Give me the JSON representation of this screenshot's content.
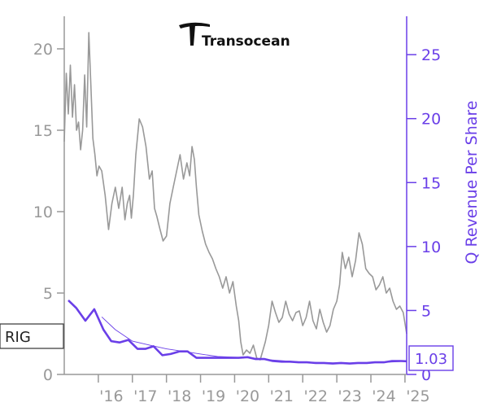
{
  "logo": {
    "company": "Transocean",
    "icon": "transocean-logo-icon"
  },
  "chart_data": {
    "type": "line",
    "ticker_label": "RIG",
    "last_value_label": "1.03",
    "x_ticks": [
      "'16",
      "'17",
      "'18",
      "'19",
      "'20",
      "'21",
      "'22",
      "'23",
      "'24",
      "'25"
    ],
    "x_range": [
      2015.0,
      2025.05
    ],
    "left_axis": {
      "ylabel": "",
      "ylim": [
        0,
        22
      ],
      "ticks": [
        0,
        5,
        10,
        15,
        20
      ],
      "color": "#999999"
    },
    "right_axis": {
      "ylabel": "Q Revenue Per Share",
      "ylim": [
        0,
        28
      ],
      "ticks": [
        0,
        5,
        10,
        15,
        20,
        25
      ],
      "color": "#6a3fe8"
    },
    "series": [
      {
        "axis": "left",
        "color": "#999999",
        "x": [
          2015.0,
          2015.06,
          2015.12,
          2015.18,
          2015.24,
          2015.3,
          2015.36,
          2015.42,
          2015.48,
          2015.54,
          2015.6,
          2015.66,
          2015.72,
          2015.78,
          2015.84,
          2015.9,
          2015.96,
          2016.02,
          2016.1,
          2016.2,
          2016.3,
          2016.4,
          2016.5,
          2016.6,
          2016.7,
          2016.78,
          2016.85,
          2016.92,
          2016.97,
          2017.03,
          2017.1,
          2017.2,
          2017.3,
          2017.4,
          2017.5,
          2017.58,
          2017.65,
          2017.72,
          2017.8,
          2017.9,
          2018.0,
          2018.1,
          2018.2,
          2018.3,
          2018.4,
          2018.5,
          2018.6,
          2018.68,
          2018.75,
          2018.82,
          2018.88,
          2018.95,
          2019.05,
          2019.15,
          2019.25,
          2019.35,
          2019.45,
          2019.55,
          2019.65,
          2019.75,
          2019.85,
          2019.95,
          2020.05,
          2020.12,
          2020.18,
          2020.25,
          2020.35,
          2020.45,
          2020.55,
          2020.65,
          2020.75,
          2020.82,
          2020.9,
          2021.0,
          2021.1,
          2021.2,
          2021.3,
          2021.4,
          2021.5,
          2021.6,
          2021.7,
          2021.8,
          2021.9,
          2022.0,
          2022.1,
          2022.2,
          2022.3,
          2022.4,
          2022.5,
          2022.6,
          2022.7,
          2022.8,
          2022.9,
          2023.0,
          2023.08,
          2023.16,
          2023.25,
          2023.35,
          2023.45,
          2023.55,
          2023.65,
          2023.75,
          2023.85,
          2023.95,
          2024.05,
          2024.15,
          2024.25,
          2024.35,
          2024.45,
          2024.55,
          2024.65,
          2024.75,
          2024.85,
          2024.95,
          2025.05
        ],
        "values": [
          14.3,
          18.5,
          16.0,
          19.0,
          15.8,
          17.8,
          15.0,
          15.5,
          13.8,
          15.0,
          18.4,
          15.2,
          21.0,
          17.8,
          14.5,
          13.5,
          12.2,
          12.8,
          12.5,
          11.0,
          8.9,
          10.5,
          11.5,
          10.2,
          11.5,
          9.5,
          10.5,
          11.0,
          9.6,
          11.0,
          13.5,
          15.7,
          15.2,
          14.0,
          12.0,
          12.5,
          10.2,
          9.7,
          9.0,
          8.2,
          8.5,
          10.5,
          11.5,
          12.5,
          13.5,
          12.0,
          13.0,
          12.2,
          14.0,
          13.2,
          11.5,
          9.8,
          8.8,
          8.0,
          7.5,
          7.1,
          6.5,
          6.0,
          5.3,
          6.0,
          5.0,
          5.7,
          4.2,
          3.3,
          2.0,
          1.2,
          1.5,
          1.3,
          1.8,
          1.0,
          0.9,
          1.4,
          2.0,
          3.0,
          4.5,
          3.8,
          3.2,
          3.5,
          4.5,
          3.7,
          3.3,
          3.8,
          3.9,
          3.0,
          3.5,
          4.5,
          3.3,
          2.8,
          4.0,
          3.2,
          2.6,
          3.0,
          4.0,
          4.5,
          5.5,
          7.5,
          6.5,
          7.2,
          6.0,
          7.0,
          8.7,
          8.0,
          6.5,
          6.2,
          6.0,
          5.2,
          5.5,
          6.0,
          5.0,
          5.3,
          4.5,
          4.0,
          4.2,
          3.8,
          2.5
        ]
      },
      {
        "axis": "right",
        "color": "#6a3fe8",
        "x": [
          2015.12,
          2015.35,
          2015.62,
          2015.88,
          2016.15,
          2016.38,
          2016.62,
          2016.88,
          2017.15,
          2017.38,
          2017.62,
          2017.88,
          2018.12,
          2018.38,
          2018.62,
          2018.88,
          2019.12,
          2019.38,
          2019.62,
          2019.88,
          2020.12,
          2020.38,
          2020.62,
          2020.88,
          2021.12,
          2021.38,
          2021.62,
          2021.88,
          2022.12,
          2022.38,
          2022.62,
          2022.88,
          2023.12,
          2023.38,
          2023.62,
          2023.88,
          2024.12,
          2024.38,
          2024.62,
          2024.88,
          2025.05
        ],
        "values": [
          5.8,
          5.2,
          4.2,
          5.1,
          3.5,
          2.6,
          2.5,
          2.7,
          2.0,
          2.0,
          2.2,
          1.5,
          1.6,
          1.8,
          1.8,
          1.3,
          1.3,
          1.3,
          1.3,
          1.3,
          1.3,
          1.35,
          1.2,
          1.2,
          1.05,
          1.0,
          1.0,
          0.95,
          0.95,
          0.9,
          0.9,
          0.85,
          0.9,
          0.85,
          0.9,
          0.9,
          0.95,
          0.95,
          1.05,
          1.05,
          1.03
        ]
      },
      {
        "axis": "right",
        "color": "#6a3fe8",
        "x": [
          2016.1,
          2016.5,
          2017.0,
          2017.5,
          2018.0,
          2018.5,
          2019.0,
          2019.5,
          2020.0,
          2020.5,
          2021.0,
          2021.5,
          2022.0,
          2022.5,
          2023.0,
          2023.5,
          2024.0,
          2024.5,
          2025.05
        ],
        "values": [
          4.5,
          3.5,
          2.6,
          2.3,
          2.0,
          1.8,
          1.6,
          1.4,
          1.35,
          1.3,
          1.15,
          1.05,
          0.97,
          0.93,
          0.9,
          0.9,
          0.92,
          0.96,
          1.03
        ]
      }
    ]
  }
}
